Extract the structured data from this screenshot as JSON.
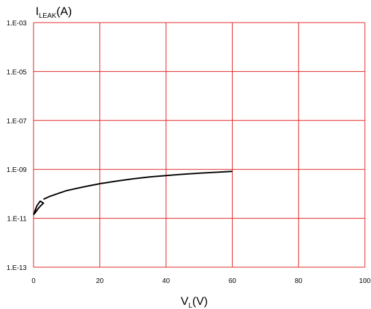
{
  "chart_data": {
    "type": "line",
    "ylabel": {
      "main": "I",
      "sub": "LEAK",
      "unit": "(A)"
    },
    "xlabel": {
      "main": "V",
      "sub": "L",
      "unit": "(V)"
    },
    "xlim": [
      0,
      100
    ],
    "ylim": [
      1e-13,
      0.001
    ],
    "yscale": "log",
    "x_ticks": [
      0,
      20,
      40,
      60,
      80,
      100
    ],
    "x_tick_labels": [
      "0",
      "20",
      "40",
      "60",
      "80",
      "100"
    ],
    "y_ticks": [
      1e-13,
      1e-11,
      1e-09,
      1e-07,
      1e-05,
      0.001
    ],
    "y_tick_labels": [
      "1.E-13",
      "1.E-11",
      "1.E-09",
      "1.E-07",
      "1.E-05",
      "1.E-03"
    ],
    "grid": true,
    "colors": {
      "grid": "#e02020",
      "line": "#000000"
    },
    "series": [
      {
        "x": [
          0,
          0.5,
          1,
          1.5,
          2,
          2.5,
          3,
          2,
          1,
          0.3,
          0
        ],
        "y": [
          1.4e-11,
          1.7e-11,
          2.1e-11,
          2.6e-11,
          3.1e-11,
          3.6e-11,
          4.2e-11,
          5e-11,
          3.2e-11,
          1.8e-11,
          1.4e-11
        ]
      },
      {
        "x": [
          3,
          5,
          8,
          10,
          15,
          20,
          25,
          30,
          35,
          40,
          45,
          50,
          55,
          60
        ],
        "y": [
          6e-11,
          8e-11,
          1.1e-10,
          1.35e-10,
          1.9e-10,
          2.6e-10,
          3.3e-10,
          4.1e-10,
          4.9e-10,
          5.6e-10,
          6.3e-10,
          7e-10,
          7.6e-10,
          8.3e-10
        ]
      }
    ]
  }
}
